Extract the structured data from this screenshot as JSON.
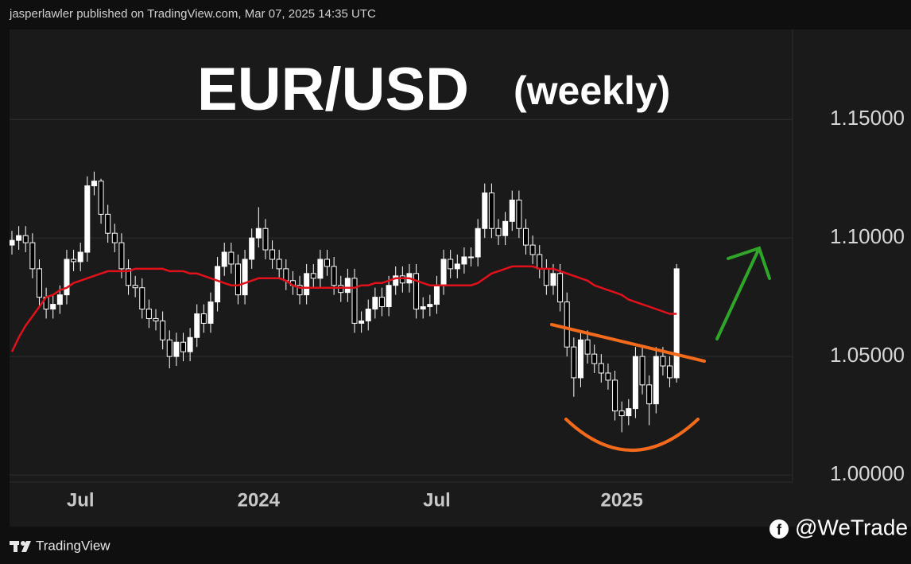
{
  "header": "jasperlawler published on TradingView.com, Mar 07, 2025 14:35 UTC",
  "footer_logo": "TradingView",
  "watermark": "@WeTrade",
  "chart_data": {
    "type": "candlestick",
    "title": "EUR/USD",
    "subtitle": "(weekly)",
    "up_color": "#ffffff",
    "down_color": "#000000",
    "categories": [
      null,
      null,
      null,
      null,
      null,
      null,
      null,
      null,
      null,
      null,
      "Jul",
      null,
      null,
      null,
      null,
      null,
      null,
      null,
      null,
      null,
      null,
      null,
      null,
      null,
      null,
      null,
      null,
      null,
      null,
      null,
      null,
      null,
      null,
      null,
      null,
      null,
      "2024",
      null,
      null,
      null,
      null,
      null,
      null,
      null,
      null,
      null,
      null,
      null,
      null,
      null,
      null,
      null,
      null,
      null,
      null,
      null,
      null,
      null,
      null,
      null,
      null,
      null,
      "Jul",
      null,
      null,
      null,
      null,
      null,
      null,
      null,
      null,
      null,
      null,
      null,
      null,
      null,
      null,
      null,
      null,
      null,
      null,
      null,
      null,
      null,
      null,
      null,
      null,
      null,
      null,
      "2025",
      null,
      null,
      null,
      null,
      null,
      null,
      null,
      null
    ],
    "open": [
      1.097,
      1.099,
      1.101,
      1.098,
      1.087,
      1.075,
      1.07,
      1.072,
      1.076,
      1.091,
      1.09,
      1.094,
      1.122,
      1.124,
      1.11,
      1.102,
      1.098,
      1.087,
      1.08,
      1.079,
      1.07,
      1.066,
      1.065,
      1.057,
      1.05,
      1.056,
      1.052,
      1.058,
      1.068,
      1.064,
      1.073,
      1.088,
      1.094,
      1.089,
      1.076,
      1.091,
      1.1,
      1.104,
      1.095,
      1.091,
      1.087,
      1.082,
      1.08,
      1.076,
      1.085,
      1.083,
      1.091,
      1.088,
      1.08,
      1.077,
      1.083,
      1.064,
      1.065,
      1.07,
      1.075,
      1.071,
      1.08,
      1.084,
      1.081,
      1.085,
      1.07,
      1.071,
      1.072,
      1.08,
      1.091,
      1.087,
      1.089,
      1.092,
      1.092,
      1.104,
      1.119,
      1.104,
      1.101,
      1.107,
      1.116,
      1.104,
      1.097,
      1.093,
      1.087,
      1.08,
      1.085,
      1.073,
      1.054,
      1.041,
      1.057,
      1.051,
      1.047,
      1.043,
      1.04,
      1.027,
      1.025,
      1.028,
      1.05,
      1.038,
      1.03,
      1.05,
      1.046,
      1.041
    ],
    "high": [
      1.103,
      1.105,
      1.105,
      1.102,
      1.091,
      1.079,
      1.076,
      1.08,
      1.095,
      1.095,
      1.098,
      1.126,
      1.128,
      1.125,
      1.114,
      1.106,
      1.102,
      1.091,
      1.084,
      1.083,
      1.074,
      1.07,
      1.069,
      1.061,
      1.06,
      1.06,
      1.062,
      1.072,
      1.072,
      1.077,
      1.092,
      1.098,
      1.098,
      1.093,
      1.095,
      1.104,
      1.113,
      1.108,
      1.099,
      1.095,
      1.091,
      1.086,
      1.084,
      1.089,
      1.089,
      1.095,
      1.095,
      1.092,
      1.084,
      1.087,
      1.087,
      1.069,
      1.074,
      1.079,
      1.079,
      1.084,
      1.088,
      1.088,
      1.089,
      1.089,
      1.075,
      1.076,
      1.084,
      1.095,
      1.095,
      1.093,
      1.096,
      1.096,
      1.108,
      1.123,
      1.123,
      1.108,
      1.111,
      1.12,
      1.12,
      1.108,
      1.101,
      1.097,
      1.091,
      1.089,
      1.089,
      1.077,
      1.058,
      1.061,
      1.061,
      1.055,
      1.051,
      1.047,
      1.044,
      1.031,
      1.032,
      1.054,
      1.054,
      1.042,
      1.054,
      1.054,
      1.05,
      1.089
    ],
    "low": [
      1.093,
      1.095,
      1.094,
      1.083,
      1.071,
      1.066,
      1.066,
      1.068,
      1.072,
      1.086,
      1.086,
      1.09,
      1.118,
      1.106,
      1.098,
      1.094,
      1.083,
      1.076,
      1.075,
      1.066,
      1.062,
      1.061,
      1.053,
      1.045,
      1.046,
      1.048,
      1.048,
      1.054,
      1.06,
      1.06,
      1.069,
      1.084,
      1.085,
      1.072,
      1.072,
      1.087,
      1.096,
      1.091,
      1.087,
      1.083,
      1.078,
      1.076,
      1.072,
      1.072,
      1.079,
      1.079,
      1.084,
      1.076,
      1.073,
      1.073,
      1.06,
      1.06,
      1.061,
      1.066,
      1.067,
      1.067,
      1.076,
      1.077,
      1.077,
      1.066,
      1.066,
      1.067,
      1.068,
      1.076,
      1.083,
      1.083,
      1.085,
      1.088,
      1.088,
      1.1,
      1.1,
      1.097,
      1.097,
      1.103,
      1.1,
      1.093,
      1.089,
      1.083,
      1.076,
      1.076,
      1.069,
      1.05,
      1.033,
      1.037,
      1.047,
      1.043,
      1.039,
      1.036,
      1.023,
      1.018,
      1.021,
      1.024,
      1.034,
      1.021,
      1.026,
      1.042,
      1.037,
      1.039
    ],
    "close": [
      1.099,
      1.101,
      1.098,
      1.087,
      1.075,
      1.07,
      1.072,
      1.076,
      1.091,
      1.09,
      1.094,
      1.122,
      1.124,
      1.11,
      1.102,
      1.098,
      1.087,
      1.08,
      1.079,
      1.07,
      1.066,
      1.065,
      1.057,
      1.05,
      1.056,
      1.052,
      1.058,
      1.068,
      1.064,
      1.073,
      1.088,
      1.094,
      1.089,
      1.076,
      1.091,
      1.1,
      1.104,
      1.095,
      1.091,
      1.087,
      1.082,
      1.08,
      1.076,
      1.085,
      1.083,
      1.091,
      1.088,
      1.08,
      1.077,
      1.083,
      1.064,
      1.065,
      1.07,
      1.075,
      1.071,
      1.08,
      1.084,
      1.081,
      1.085,
      1.07,
      1.071,
      1.072,
      1.08,
      1.091,
      1.087,
      1.089,
      1.092,
      1.092,
      1.104,
      1.119,
      1.104,
      1.101,
      1.107,
      1.116,
      1.104,
      1.097,
      1.093,
      1.087,
      1.08,
      1.085,
      1.073,
      1.054,
      1.041,
      1.057,
      1.051,
      1.047,
      1.043,
      1.04,
      1.027,
      1.025,
      1.028,
      1.05,
      1.038,
      1.03,
      1.05,
      1.046,
      1.041,
      1.087
    ],
    "moving_average": {
      "color": "#e0111b",
      "values": [
        1.052,
        1.058,
        1.063,
        1.067,
        1.071,
        1.075,
        1.076,
        1.078,
        1.079,
        1.081,
        1.082,
        1.083,
        1.084,
        1.085,
        1.086,
        1.086,
        1.086,
        1.086,
        1.087,
        1.087,
        1.087,
        1.087,
        1.087,
        1.086,
        1.086,
        1.086,
        1.085,
        1.085,
        1.084,
        1.083,
        1.082,
        1.081,
        1.08,
        1.08,
        1.081,
        1.082,
        1.083,
        1.083,
        1.083,
        1.083,
        1.082,
        1.08,
        1.079,
        1.079,
        1.079,
        1.079,
        1.079,
        1.079,
        1.079,
        1.079,
        1.079,
        1.08,
        1.08,
        1.081,
        1.081,
        1.082,
        1.083,
        1.083,
        1.083,
        1.082,
        1.081,
        1.08,
        1.08,
        1.08,
        1.08,
        1.08,
        1.08,
        1.08,
        1.081,
        1.083,
        1.085,
        1.086,
        1.087,
        1.088,
        1.088,
        1.088,
        1.088,
        1.087,
        1.087,
        1.087,
        1.086,
        1.085,
        1.084,
        1.083,
        1.082,
        1.08,
        1.079,
        1.078,
        1.077,
        1.076,
        1.074,
        1.073,
        1.072,
        1.071,
        1.07,
        1.069,
        1.068,
        1.068
      ]
    },
    "ylim": [
      0.997,
      1.188
    ],
    "yticks": [
      {
        "value": 1.0,
        "label": "1.00000"
      },
      {
        "value": 1.05,
        "label": "1.05000"
      },
      {
        "value": 1.1,
        "label": "1.10000"
      },
      {
        "value": 1.15,
        "label": "1.15000"
      }
    ],
    "grid": true
  }
}
